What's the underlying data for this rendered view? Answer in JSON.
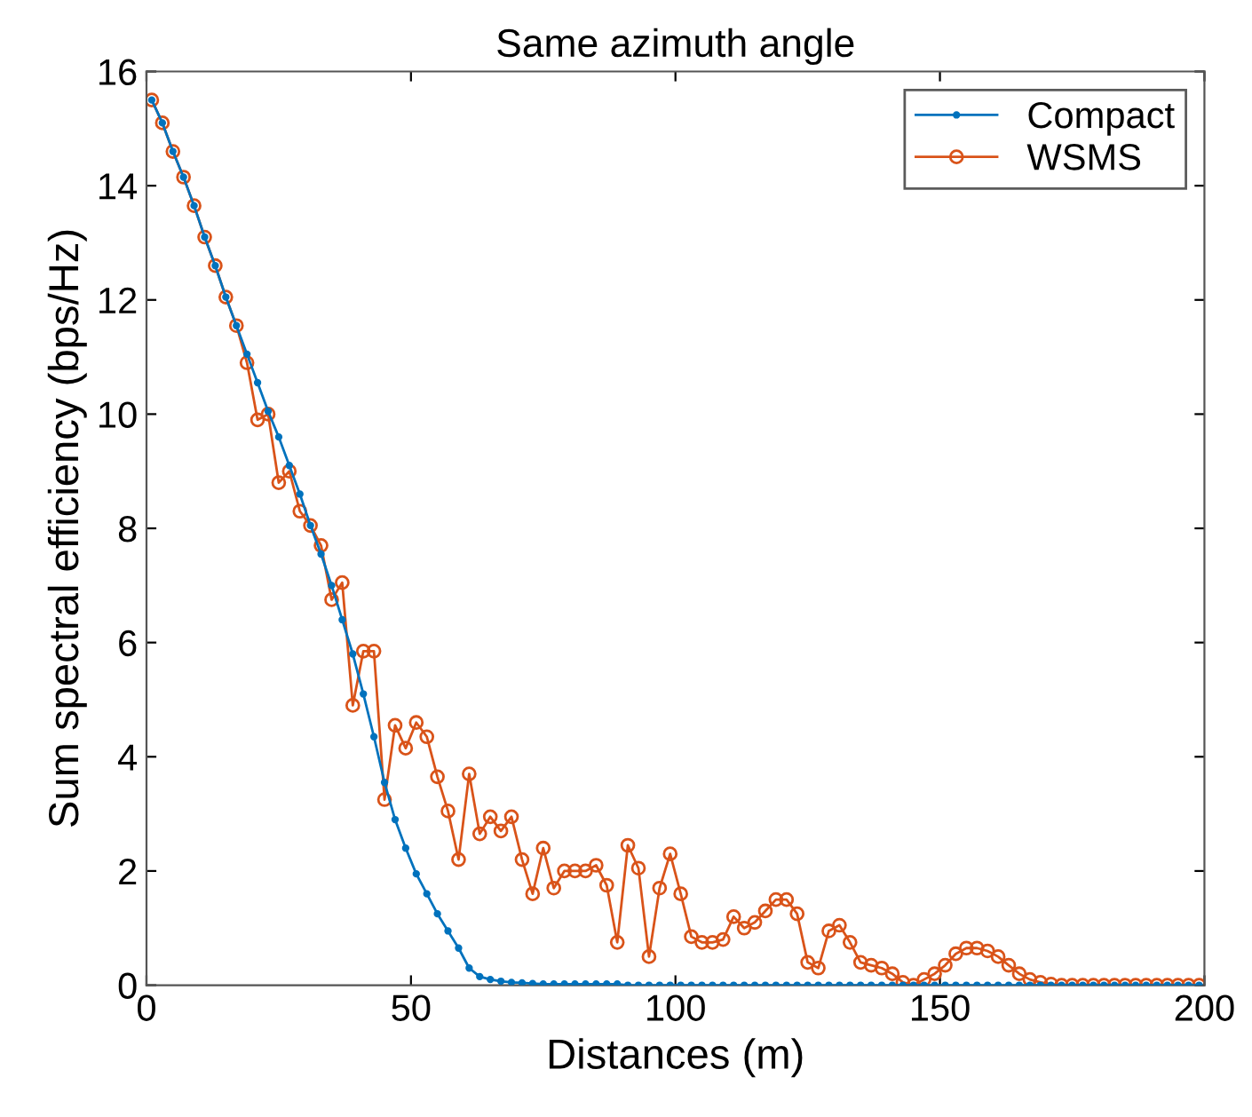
{
  "chart_data": {
    "type": "line",
    "title": "Same azimuth angle",
    "xlabel": "Distances (m)",
    "ylabel": "Sum spectral efficiency (bps/Hz)",
    "x": [
      1,
      3,
      5,
      7,
      9,
      11,
      13,
      15,
      17,
      19,
      21,
      23,
      25,
      27,
      29,
      31,
      33,
      35,
      37,
      39,
      41,
      43,
      45,
      47,
      49,
      51,
      53,
      55,
      57,
      59,
      61,
      63,
      65,
      67,
      69,
      71,
      73,
      75,
      77,
      79,
      81,
      83,
      85,
      87,
      89,
      91,
      93,
      95,
      97,
      99,
      101,
      103,
      105,
      107,
      109,
      111,
      113,
      115,
      117,
      119,
      121,
      123,
      125,
      127,
      129,
      131,
      133,
      135,
      137,
      139,
      141,
      143,
      145,
      147,
      149,
      151,
      153,
      155,
      157,
      159,
      161,
      163,
      165,
      167,
      169,
      171,
      173,
      175,
      177,
      179,
      181,
      183,
      185,
      187,
      189,
      191,
      193,
      195,
      197,
      199
    ],
    "series": [
      {
        "name": "Compact",
        "color": "#0072bd",
        "marker": "circle",
        "values": [
          15.5,
          15.1,
          14.6,
          14.15,
          13.65,
          13.1,
          12.6,
          12.05,
          11.55,
          11.05,
          10.55,
          10.05,
          9.6,
          9.1,
          8.6,
          8.05,
          7.55,
          7.0,
          6.4,
          5.8,
          5.1,
          4.35,
          3.55,
          2.9,
          2.4,
          1.95,
          1.6,
          1.25,
          0.95,
          0.65,
          0.3,
          0.15,
          0.1,
          0.07,
          0.05,
          0.04,
          0.03,
          0.02,
          0.02,
          0.02,
          0.02,
          0.02,
          0.02,
          0.02,
          0.02,
          0,
          0,
          0,
          0,
          0,
          0,
          0,
          0,
          0,
          0,
          0,
          0,
          0,
          0,
          0,
          0,
          0,
          0,
          0,
          0,
          0,
          0,
          0,
          0,
          0,
          0,
          0,
          0,
          0,
          0,
          0,
          0,
          0,
          0,
          0,
          0,
          0,
          0,
          0,
          0,
          0,
          0,
          0,
          0,
          0,
          0,
          0,
          0,
          0,
          0,
          0,
          0,
          0,
          0,
          0
        ]
      },
      {
        "name": "WSMS",
        "color": "#d95319",
        "marker": "circle",
        "values": [
          15.5,
          15.1,
          14.6,
          14.15,
          13.65,
          13.1,
          12.6,
          12.05,
          11.55,
          10.9,
          9.9,
          10.0,
          8.8,
          9.0,
          8.3,
          8.05,
          7.7,
          6.75,
          7.05,
          4.9,
          5.85,
          5.85,
          3.25,
          4.55,
          4.15,
          4.6,
          4.35,
          3.65,
          3.05,
          2.2,
          3.7,
          2.65,
          2.95,
          2.7,
          2.95,
          2.2,
          1.6,
          2.4,
          1.7,
          2.0,
          2.0,
          2.0,
          2.1,
          1.75,
          0.75,
          2.45,
          2.05,
          0.5,
          1.7,
          2.3,
          1.6,
          0.85,
          0.75,
          0.75,
          0.8,
          1.2,
          1.0,
          1.1,
          1.3,
          1.5,
          1.5,
          1.25,
          0.4,
          0.3,
          0.95,
          1.05,
          0.75,
          0.4,
          0.35,
          0.3,
          0.2,
          0.05,
          0,
          0.1,
          0.2,
          0.35,
          0.55,
          0.65,
          0.65,
          0.6,
          0.5,
          0.35,
          0.2,
          0.1,
          0.05,
          0.02,
          0,
          0,
          0,
          0,
          0,
          0,
          0,
          0,
          0,
          0,
          0,
          0,
          0,
          0
        ]
      }
    ],
    "xlim": [
      0,
      200
    ],
    "xticks": [
      0,
      50,
      100,
      150,
      200
    ],
    "ylim": [
      0,
      16
    ],
    "yticks": [
      0,
      2,
      4,
      6,
      8,
      10,
      12,
      14,
      16
    ],
    "grid": false,
    "legend": "top right"
  }
}
